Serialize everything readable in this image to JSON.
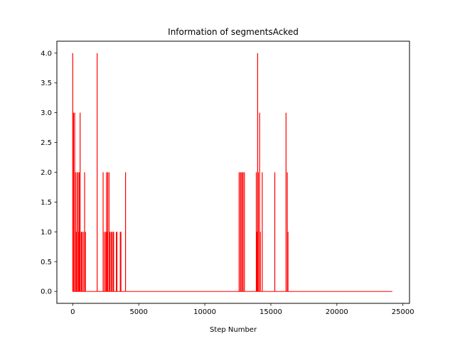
{
  "chart_data": {
    "type": "line",
    "title": "Information of segmentsAcked",
    "xlabel": "Step Number",
    "ylabel": "",
    "xlim": [
      -1200,
      25500
    ],
    "ylim": [
      -0.2,
      4.2
    ],
    "xticks": [
      0,
      5000,
      10000,
      15000,
      20000,
      25000
    ],
    "xtick_labels": [
      "0",
      "5000",
      "10000",
      "15000",
      "20000",
      "25000"
    ],
    "yticks": [
      0.0,
      0.5,
      1.0,
      1.5,
      2.0,
      2.5,
      3.0,
      3.5,
      4.0
    ],
    "ytick_labels": [
      "0.0",
      "0.5",
      "1.0",
      "1.5",
      "2.0",
      "2.5",
      "3.0",
      "3.5",
      "4.0"
    ],
    "grid": false,
    "series": [
      {
        "color": "#ff0000",
        "baseline": 0,
        "x_max": 24200,
        "spikes": [
          [
            0,
            4
          ],
          [
            60,
            3
          ],
          [
            110,
            0
          ],
          [
            150,
            3
          ],
          [
            200,
            2
          ],
          [
            240,
            0
          ],
          [
            280,
            1
          ],
          [
            320,
            2
          ],
          [
            370,
            0
          ],
          [
            410,
            2
          ],
          [
            450,
            1
          ],
          [
            500,
            2
          ],
          [
            560,
            3
          ],
          [
            600,
            0
          ],
          [
            650,
            1
          ],
          [
            700,
            1
          ],
          [
            760,
            0
          ],
          [
            800,
            1
          ],
          [
            850,
            0
          ],
          [
            900,
            2
          ],
          [
            960,
            1
          ],
          [
            1850,
            4
          ],
          [
            1900,
            0
          ],
          [
            2300,
            2
          ],
          [
            2350,
            0
          ],
          [
            2400,
            1
          ],
          [
            2450,
            0
          ],
          [
            2500,
            1
          ],
          [
            2560,
            2
          ],
          [
            2600,
            1
          ],
          [
            2650,
            2
          ],
          [
            2700,
            0
          ],
          [
            2750,
            2
          ],
          [
            2800,
            1
          ],
          [
            2850,
            0
          ],
          [
            2900,
            1
          ],
          [
            2950,
            1
          ],
          [
            3000,
            0
          ],
          [
            3050,
            1
          ],
          [
            3100,
            1
          ],
          [
            3200,
            0
          ],
          [
            3300,
            1
          ],
          [
            3350,
            1
          ],
          [
            3400,
            0
          ],
          [
            3600,
            1
          ],
          [
            3650,
            1
          ],
          [
            3700,
            0
          ],
          [
            4000,
            2
          ],
          [
            4050,
            0
          ],
          [
            12600,
            2
          ],
          [
            12650,
            0
          ],
          [
            12700,
            2
          ],
          [
            12750,
            2
          ],
          [
            12800,
            0
          ],
          [
            12850,
            2
          ],
          [
            12900,
            2
          ],
          [
            12950,
            0
          ],
          [
            13000,
            2
          ],
          [
            13900,
            2
          ],
          [
            13950,
            1
          ],
          [
            14000,
            4
          ],
          [
            14050,
            2
          ],
          [
            14100,
            0
          ],
          [
            14150,
            3
          ],
          [
            14200,
            1
          ],
          [
            14250,
            0
          ],
          [
            14350,
            2
          ],
          [
            14400,
            0
          ],
          [
            15300,
            2
          ],
          [
            15350,
            0
          ],
          [
            16150,
            3
          ],
          [
            16200,
            0
          ],
          [
            16250,
            2
          ],
          [
            16300,
            1
          ],
          [
            16350,
            0
          ]
        ]
      }
    ]
  }
}
